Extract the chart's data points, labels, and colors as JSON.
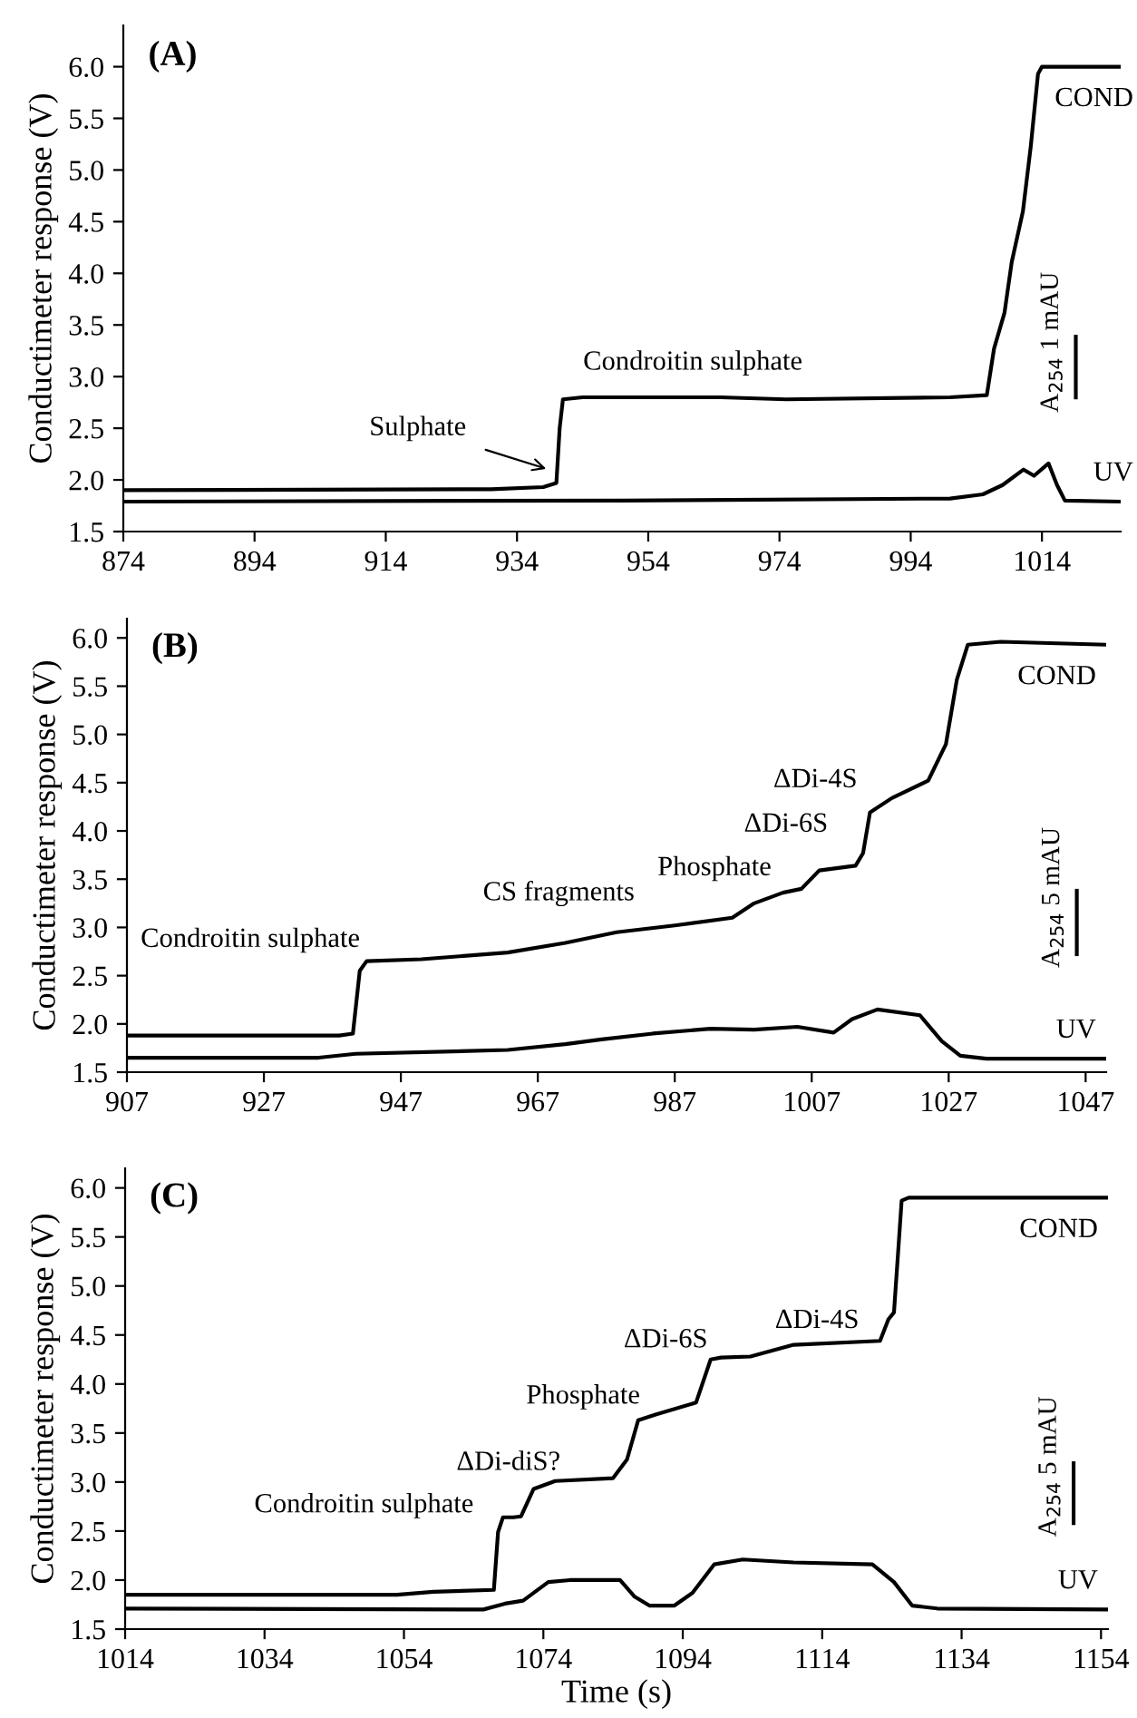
{
  "chart_data": [
    {
      "type": "line",
      "title": "(A)",
      "ylabel": "Conductimeter response (V)",
      "xlim": [
        874,
        1026
      ],
      "xticks": [
        874,
        894,
        914,
        934,
        954,
        974,
        994,
        1014
      ],
      "ylim": [
        1.5,
        6.4
      ],
      "yticks": [
        1.5,
        {
          "value": 2,
          "label": "2.0"
        },
        2.5,
        {
          "value": 3,
          "label": "3.0"
        },
        3.5,
        {
          "value": 4,
          "label": "4.0"
        },
        4.5,
        {
          "value": 5,
          "label": "5.0"
        },
        5.5,
        {
          "value": 6,
          "label": "6.0"
        }
      ],
      "series": [
        {
          "name": "COND",
          "color": "#000000",
          "x": [
            874,
            930,
            938,
            940,
            940.5,
            941,
            944,
            965,
            975,
            1000,
            1005.6,
            1006.7,
            1008.3,
            1009.4,
            1011.1,
            1012.3,
            1013.4,
            1014,
            1026
          ],
          "values": [
            1.9,
            1.91,
            1.93,
            1.97,
            2.5,
            2.78,
            2.8,
            2.8,
            2.78,
            2.8,
            2.82,
            3.27,
            3.62,
            4.11,
            4.6,
            5.23,
            5.93,
            6.0,
            6.0
          ]
        },
        {
          "name": "UV",
          "color": "#000000",
          "x": [
            874,
            950,
            1000,
            1005,
            1008,
            1011.2,
            1012.8,
            1015,
            1016.3,
            1017.5,
            1026
          ],
          "values": [
            1.79,
            1.8,
            1.82,
            1.86,
            1.95,
            2.1,
            2.04,
            2.16,
            1.95,
            1.8,
            1.79
          ]
        }
      ],
      "annotations": [
        "Sulphate",
        "Condroitin sulphate",
        "A$_{254}$ 1 mAU"
      ]
    },
    {
      "type": "line",
      "title": "(B)",
      "ylabel": "Conductimeter response (V)",
      "xlim": [
        907,
        1050
      ],
      "xticks": [
        907,
        927,
        947,
        967,
        987,
        1007,
        1027,
        1047
      ],
      "ylim": [
        1.5,
        6.2
      ],
      "yticks": [
        1.5,
        {
          "value": 2,
          "label": "2.0"
        },
        2.5,
        {
          "value": 3,
          "label": "3.0"
        },
        3.5,
        {
          "value": 4,
          "label": "4.0"
        },
        4.5,
        {
          "value": 5,
          "label": "5.0"
        },
        5.5,
        {
          "value": 6,
          "label": "6.0"
        }
      ],
      "series": [
        {
          "name": "COND",
          "color": "#000000",
          "x": [
            907,
            938,
            940,
            941,
            942,
            950,
            962.6,
            971,
            978.5,
            987,
            995.4,
            998.6,
            1002.8,
            1005.5,
            1008.1,
            1013.4,
            1014.5,
            1015.5,
            1018.7,
            1024,
            1026.6,
            1028.2,
            1029.8,
            1034.6,
            1050
          ],
          "values": [
            1.88,
            1.88,
            1.9,
            2.55,
            2.65,
            2.67,
            2.74,
            2.84,
            2.95,
            3.02,
            3.1,
            3.25,
            3.36,
            3.4,
            3.59,
            3.64,
            3.77,
            4.19,
            4.34,
            4.52,
            4.9,
            5.57,
            5.93,
            5.96,
            5.93
          ]
        },
        {
          "name": "UV",
          "color": "#000000",
          "x": [
            907,
            935,
            940.4,
            962.6,
            971,
            976.3,
            983.8,
            992.2,
            998.6,
            1004.9,
            1010.2,
            1012.9,
            1016.6,
            1022.8,
            1026,
            1028.7,
            1032.5,
            1050
          ],
          "values": [
            1.65,
            1.65,
            1.69,
            1.73,
            1.79,
            1.84,
            1.9,
            1.95,
            1.94,
            1.97,
            1.91,
            2.05,
            2.15,
            2.09,
            1.82,
            1.67,
            1.64,
            1.64
          ]
        }
      ],
      "annotations": [
        "Condroitin sulphate",
        "CS fragments",
        "Phosphate",
        "ΔDi-6S",
        "ΔDi-4S",
        "A$_{254}$ 5 mAU"
      ]
    },
    {
      "type": "line",
      "title": "(C)",
      "xlabel": "Time (s)",
      "ylabel": "Conductimeter response (V)",
      "xlim": [
        1014,
        1155
      ],
      "xticks": [
        1014,
        1034,
        1054,
        1074,
        1094,
        1114,
        1134,
        1154
      ],
      "ylim": [
        1.5,
        6.2
      ],
      "yticks": [
        1.5,
        {
          "value": 2,
          "label": "2.0"
        },
        2.5,
        {
          "value": 3,
          "label": "3.0"
        },
        3.5,
        {
          "value": 4,
          "label": "4.0"
        },
        4.5,
        {
          "value": 5,
          "label": "5.0"
        },
        5.5,
        {
          "value": 6,
          "label": "6.0"
        }
      ],
      "series": [
        {
          "name": "COND",
          "color": "#000000",
          "x": [
            1014,
            1053,
            1058.2,
            1066.9,
            1067.5,
            1068.2,
            1069.7,
            1070.8,
            1072.6,
            1075.7,
            1084,
            1086,
            1087.6,
            1090.2,
            1095.9,
            1098,
            1099.5,
            1103.7,
            1109.9,
            1122.3,
            1123.5,
            1124.3,
            1125.4,
            1126.4,
            1155
          ],
          "values": [
            1.85,
            1.85,
            1.88,
            1.9,
            2.49,
            2.64,
            2.64,
            2.65,
            2.93,
            3.01,
            3.04,
            3.23,
            3.63,
            3.69,
            3.81,
            4.25,
            4.27,
            4.28,
            4.4,
            4.44,
            4.66,
            4.73,
            5.87,
            5.9,
            5.9
          ]
        },
        {
          "name": "UV",
          "color": "#000000",
          "x": [
            1014,
            1065.4,
            1068.5,
            1071.1,
            1074.7,
            1077.8,
            1085,
            1087.1,
            1089.2,
            1092.8,
            1095.4,
            1098.5,
            1102.6,
            1109.9,
            1121.2,
            1124.3,
            1126.9,
            1130.5,
            1155
          ],
          "values": [
            1.71,
            1.7,
            1.76,
            1.79,
            1.98,
            2.0,
            2.0,
            1.83,
            1.74,
            1.74,
            1.87,
            2.16,
            2.21,
            2.18,
            2.16,
            1.98,
            1.74,
            1.71,
            1.7
          ]
        }
      ],
      "annotations": [
        "Condroitin sulphate",
        "ΔDi-diS?",
        "Phosphate",
        "ΔDi-6S",
        "ΔDi-4S",
        "A$_{254}$ 5 mAU"
      ]
    }
  ]
}
